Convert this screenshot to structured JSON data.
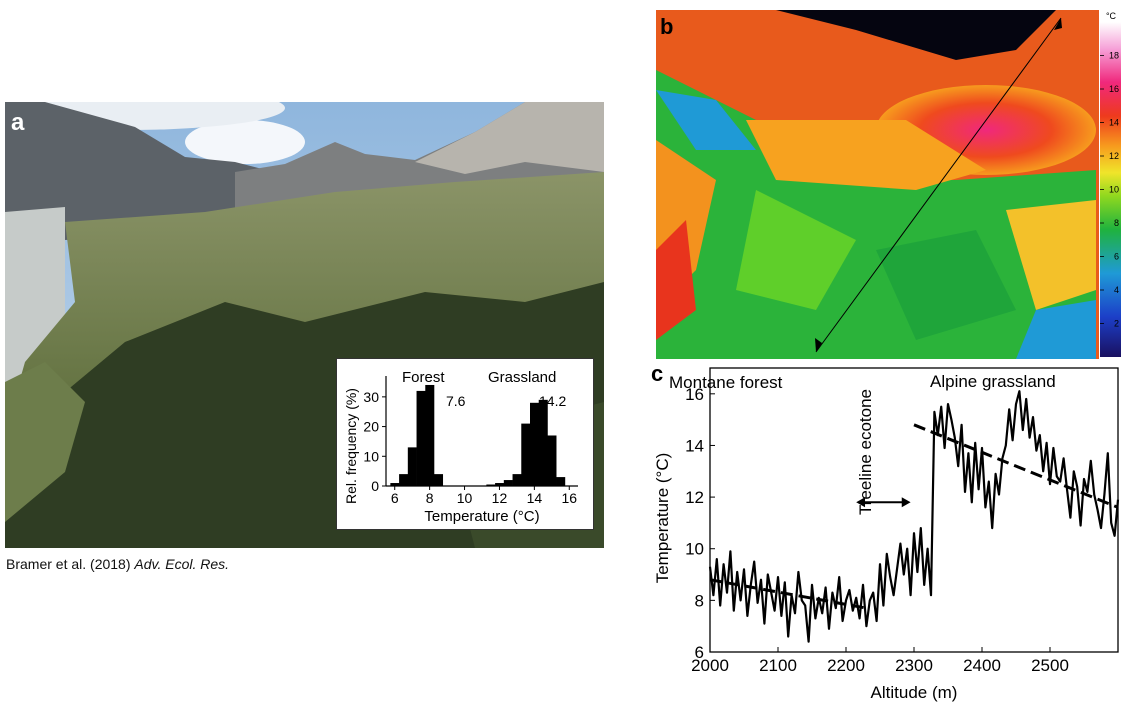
{
  "caption": {
    "authors": "Bramer et al. (2018)",
    "journal": "Adv. Ecol. Res."
  },
  "panel_a": {
    "letter": "a",
    "inset": {
      "forest_label": "Forest",
      "grassland_label": "Grassland",
      "forest_mean": "7.6",
      "grassland_mean": "14.2"
    }
  },
  "panel_b": {
    "letter": "b",
    "unit": "°C",
    "scale_ticks": [
      "2",
      "4",
      "6",
      "8",
      "10",
      "12",
      "14",
      "16",
      "18"
    ]
  },
  "panel_c": {
    "letter": "c",
    "left_label": "Montane forest",
    "ecotone_label": "Treeline ecotone",
    "right_label": "Alpine grassland"
  },
  "chart_data": [
    {
      "type": "bar",
      "series": [
        {
          "name": "Forest",
          "x": [
            6.0,
            6.5,
            7.0,
            7.5,
            8.0,
            8.5
          ],
          "values": [
            1,
            4,
            13,
            32,
            34,
            4
          ]
        },
        {
          "name": "Grassland",
          "x": [
            11.5,
            12.0,
            12.5,
            13.0,
            13.5,
            14.0,
            14.5,
            15.0,
            15.5
          ],
          "values": [
            0.5,
            1,
            2,
            4,
            21,
            28,
            29,
            17,
            3
          ]
        }
      ],
      "xlabel": "Temperature (°C)",
      "ylabel": "Rel. frequency (%)",
      "xticks": [
        "6",
        "8",
        "10",
        "12",
        "14",
        "16"
      ],
      "yticks": [
        "0",
        "10",
        "20",
        "30"
      ],
      "xlim": [
        5.5,
        16.5
      ],
      "ylim": [
        0,
        35
      ]
    },
    {
      "type": "line",
      "xlabel": "Altitude (m)",
      "ylabel": "Temperature (°C)",
      "xticks": [
        "2000",
        "2100",
        "2200",
        "2300",
        "2400",
        "2500"
      ],
      "yticks": [
        "6",
        "8",
        "10",
        "12",
        "14",
        "16"
      ],
      "xlim": [
        2000,
        2600
      ],
      "ylim": [
        6,
        17
      ],
      "x": [
        2000,
        2005,
        2010,
        2015,
        2020,
        2025,
        2030,
        2035,
        2040,
        2045,
        2050,
        2055,
        2060,
        2065,
        2070,
        2075,
        2080,
        2085,
        2090,
        2095,
        2100,
        2105,
        2110,
        2115,
        2120,
        2125,
        2130,
        2135,
        2140,
        2145,
        2150,
        2155,
        2160,
        2165,
        2170,
        2175,
        2180,
        2185,
        2190,
        2195,
        2200,
        2205,
        2210,
        2215,
        2220,
        2225,
        2230,
        2235,
        2240,
        2245,
        2250,
        2255,
        2260,
        2265,
        2270,
        2275,
        2280,
        2285,
        2290,
        2295,
        2300,
        2305,
        2310,
        2315,
        2320,
        2325,
        2330,
        2335,
        2340,
        2345,
        2350,
        2355,
        2360,
        2365,
        2370,
        2375,
        2380,
        2385,
        2390,
        2395,
        2400,
        2405,
        2410,
        2415,
        2420,
        2425,
        2430,
        2435,
        2440,
        2445,
        2450,
        2455,
        2460,
        2465,
        2470,
        2475,
        2480,
        2485,
        2490,
        2495,
        2500,
        2505,
        2510,
        2515,
        2520,
        2525,
        2530,
        2535,
        2540,
        2545,
        2550,
        2555,
        2560,
        2565,
        2570,
        2575,
        2580,
        2585,
        2590,
        2595,
        2600
      ],
      "values": [
        9.3,
        8.2,
        9.6,
        7.8,
        9.4,
        8.3,
        9.9,
        7.6,
        9.1,
        8.0,
        9.2,
        7.4,
        8.6,
        9.5,
        7.9,
        8.8,
        7.1,
        9.0,
        8.3,
        7.6,
        8.9,
        7.4,
        8.7,
        6.6,
        8.2,
        7.5,
        9.1,
        8.0,
        7.8,
        6.4,
        8.6,
        7.3,
        8.1,
        7.5,
        8.5,
        6.9,
        8.3,
        7.7,
        8.9,
        7.2,
        8.0,
        8.4,
        7.6,
        8.1,
        7.3,
        8.6,
        7.0,
        8.0,
        8.3,
        7.2,
        9.4,
        7.8,
        9.8,
        8.9,
        8.2,
        9.2,
        10.2,
        9.0,
        10.0,
        8.2,
        10.6,
        9.1,
        10.8,
        8.6,
        10.0,
        8.2,
        15.3,
        14.4,
        15.5,
        13.9,
        15.6,
        15.0,
        14.3,
        13.2,
        14.8,
        12.2,
        13.7,
        11.8,
        14.1,
        12.3,
        13.9,
        11.6,
        12.6,
        10.8,
        12.9,
        12.1,
        13.5,
        14.0,
        15.4,
        14.2,
        15.6,
        16.1,
        14.6,
        15.8,
        14.3,
        15.1,
        13.8,
        14.4,
        13.0,
        14.1,
        12.5,
        13.9,
        12.8,
        12.6,
        13.5,
        12.3,
        11.2,
        13.0,
        12.4,
        10.9,
        12.7,
        12.2,
        13.4,
        12.1,
        11.5,
        10.8,
        12.1,
        13.7,
        11.0,
        10.5,
        11.9
      ]
    }
  ]
}
